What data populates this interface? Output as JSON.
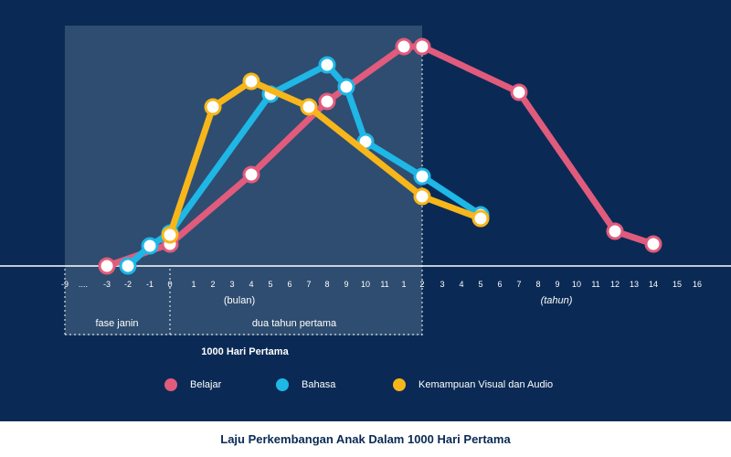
{
  "colors": {
    "background": "#0a2a55",
    "belajar": "#e15b7c",
    "bahasa": "#1eb7e6",
    "visual": "#f7b61a",
    "shade": "#2e4d70"
  },
  "chart_data": {
    "type": "line",
    "title": "Laju Perkembangan Anak Dalam 1000 Hari Pertama",
    "x_ticks": [
      "-9",
      "....",
      "-3",
      "-2",
      "-1",
      "0",
      "1",
      "2",
      "3",
      "4",
      "5",
      "6",
      "7",
      "8",
      "9",
      "10",
      "11",
      "1",
      "2",
      "3",
      "4",
      "5",
      "6",
      "7",
      "8",
      "9",
      "10",
      "11",
      "12",
      "13",
      "14",
      "15",
      "16"
    ],
    "unit_labels": {
      "months": "(bulan)",
      "years": "(tahun)"
    },
    "phase_labels": {
      "fetal": "fase janin",
      "first_two_years": "dua tahun pertama",
      "period": "1000 Hari Pertama"
    },
    "series": [
      {
        "name": "Belajar",
        "color": "#e15b7c",
        "points": [
          [
            "-3",
            0.0
          ],
          [
            "0",
            0.12
          ],
          [
            "4",
            0.5
          ],
          [
            "8",
            0.9
          ],
          [
            "1",
            1.2
          ],
          [
            "2",
            1.2
          ],
          [
            "7",
            0.95
          ],
          [
            "12",
            0.19
          ],
          [
            "14",
            0.12
          ]
        ]
      },
      {
        "name": "Bahasa",
        "color": "#1eb7e6",
        "points": [
          [
            "-2",
            0.0
          ],
          [
            "-1",
            0.11
          ],
          [
            "0",
            0.18
          ],
          [
            "5",
            0.94
          ],
          [
            "8",
            1.1
          ],
          [
            "9",
            0.98
          ],
          [
            "10",
            0.68
          ],
          [
            "2",
            0.49
          ],
          [
            "5",
            0.28
          ]
        ]
      },
      {
        "name": "Kemampuan Visual dan Audio",
        "color": "#f7b61a",
        "points": [
          [
            "0",
            0.17
          ],
          [
            "2",
            0.87
          ],
          [
            "4",
            1.01
          ],
          [
            "7",
            0.87
          ],
          [
            "2",
            0.38
          ],
          [
            "5",
            0.26
          ]
        ]
      }
    ]
  },
  "caption": "Laju Perkembangan Anak Dalam 1000 Hari Pertama"
}
